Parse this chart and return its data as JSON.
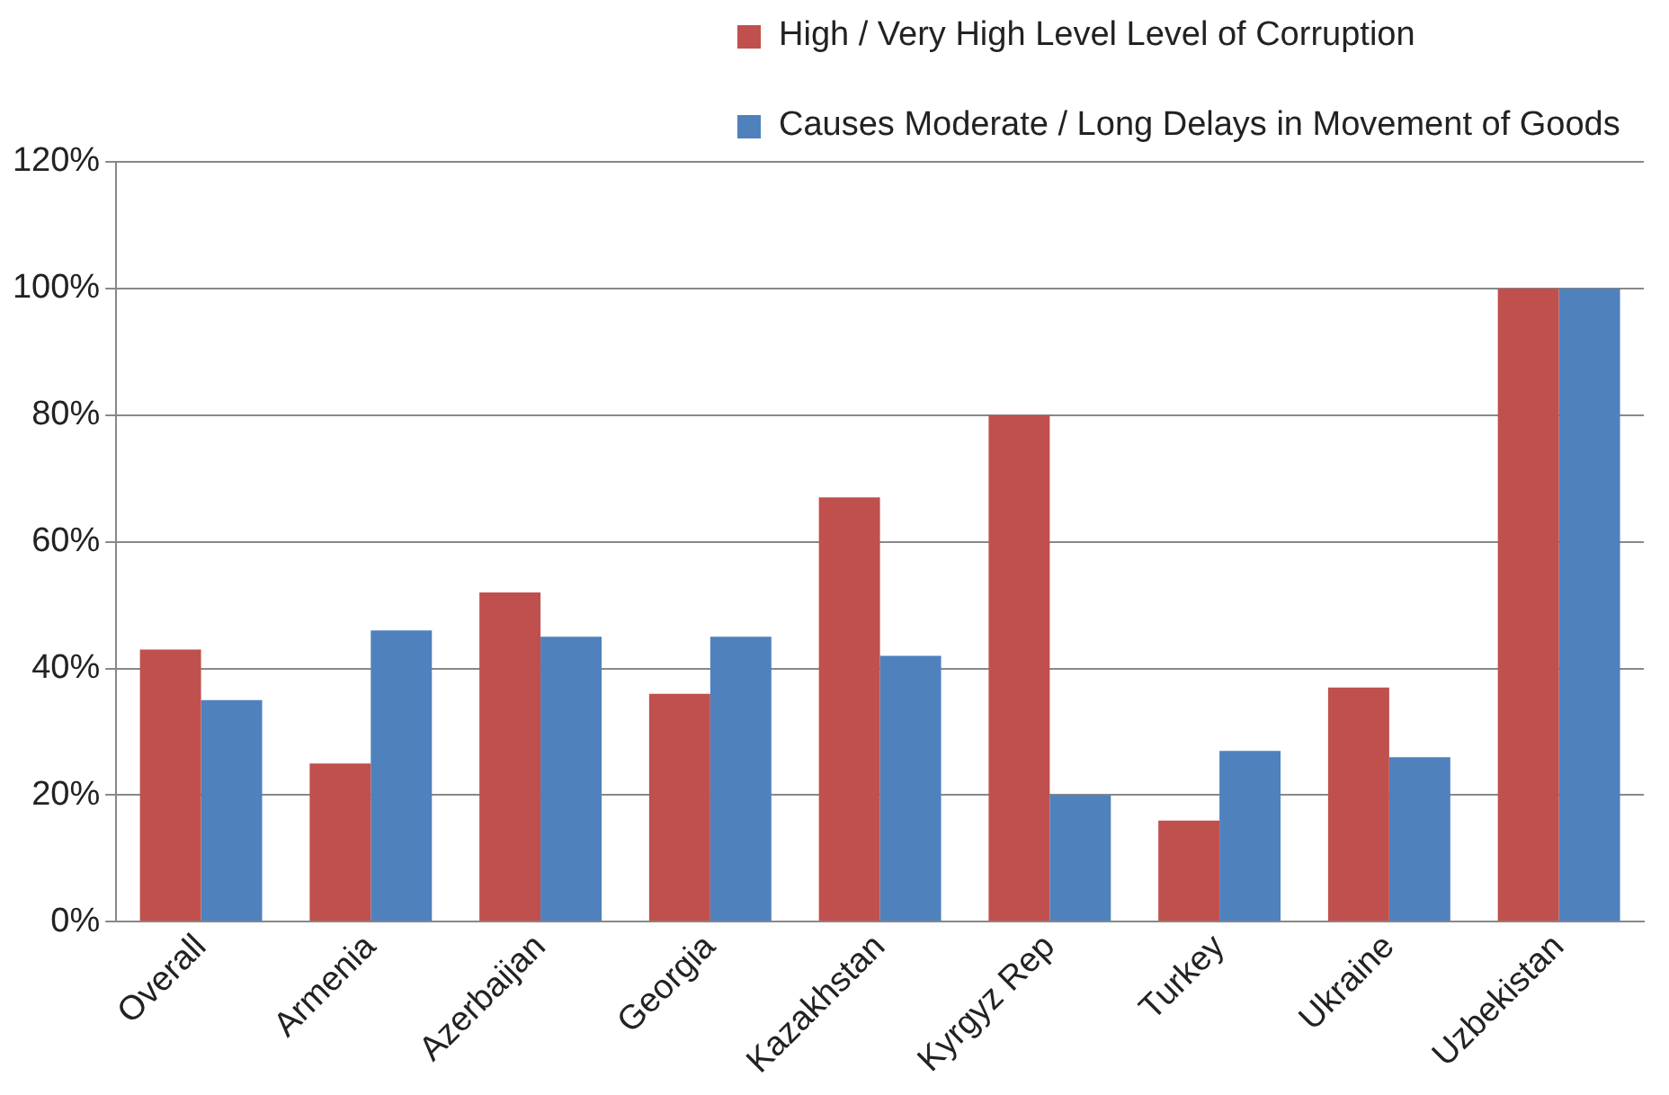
{
  "chart_data": {
    "type": "bar",
    "categories": [
      "Overall",
      "Armenia",
      "Azerbaijan",
      "Georgia",
      "Kazakhstan",
      "Kyrgyz Rep",
      "Turkey",
      "Ukraine",
      "Uzbekistan"
    ],
    "series": [
      {
        "name": "High / Very High Level Level of Corruption",
        "color": "#c0504d",
        "values": [
          43,
          25,
          52,
          36,
          67,
          80,
          16,
          37,
          100
        ]
      },
      {
        "name": "Causes Moderate / Long Delays in Movement of Goods",
        "color": "#4f81bd",
        "values": [
          35,
          46,
          45,
          45,
          42,
          20,
          27,
          26,
          100
        ]
      }
    ],
    "ylim": [
      0,
      120
    ],
    "yticks": [
      {
        "value": 0,
        "label": "0%"
      },
      {
        "value": 20,
        "label": "20%"
      },
      {
        "value": 40,
        "label": "40%"
      },
      {
        "value": 60,
        "label": "60%"
      },
      {
        "value": 80,
        "label": "80%"
      },
      {
        "value": 100,
        "label": "100%"
      },
      {
        "value": 120,
        "label": "120%"
      }
    ],
    "grid": "y",
    "legend": "top"
  }
}
